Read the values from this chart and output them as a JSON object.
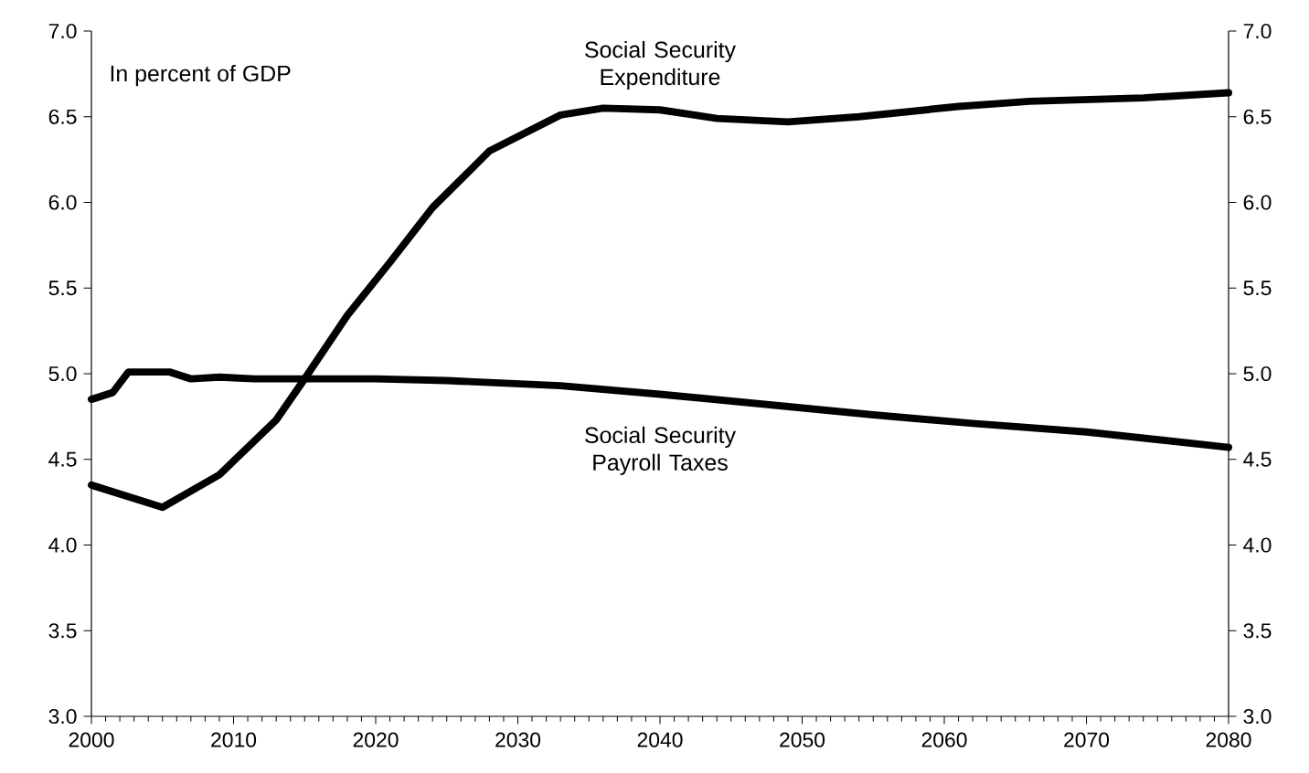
{
  "chart_data": {
    "type": "line",
    "annotations": [
      "In percent of GDP"
    ],
    "xlim": [
      2000,
      2080
    ],
    "xticks": [
      2000,
      2010,
      2020,
      2030,
      2040,
      2050,
      2060,
      2070,
      2080
    ],
    "ylim": [
      3,
      7
    ],
    "yticks": [
      {
        "value": 3,
        "label": "3.0"
      },
      {
        "value": 3.5,
        "label": "3.5"
      },
      {
        "value": 4,
        "label": "4.0"
      },
      {
        "value": 4.5,
        "label": "4.5"
      },
      {
        "value": 5,
        "label": "5.0"
      },
      {
        "value": 5.5,
        "label": "5.5"
      },
      {
        "value": 6,
        "label": "6.0"
      },
      {
        "value": 6.5,
        "label": "6.5"
      },
      {
        "value": 7,
        "label": "7.0"
      }
    ],
    "y2lim": [
      3,
      7
    ],
    "y2ticks": [
      {
        "value": 3,
        "label": "3.0"
      },
      {
        "value": 3.5,
        "label": "3.5"
      },
      {
        "value": 4,
        "label": "4.0"
      },
      {
        "value": 4.5,
        "label": "4.5"
      },
      {
        "value": 5,
        "label": "5.0"
      },
      {
        "value": 5.5,
        "label": "5.5"
      },
      {
        "value": 6,
        "label": "6.0"
      },
      {
        "value": 6.5,
        "label": "6.5"
      },
      {
        "value": 7,
        "label": "7.0"
      }
    ],
    "grid": false,
    "marker": "none",
    "line_style": "solid",
    "series": [
      {
        "name": "Social Security Expenditure",
        "color": "#000000",
        "x": [
          2000,
          2005,
          2009,
          2013,
          2015,
          2018,
          2021,
          2024,
          2028,
          2033,
          2036,
          2040,
          2044,
          2049,
          2054,
          2061,
          2066,
          2074,
          2080
        ],
        "values": [
          4.35,
          4.22,
          4.41,
          4.73,
          4.97,
          5.34,
          5.65,
          5.97,
          6.3,
          6.51,
          6.55,
          6.54,
          6.49,
          6.47,
          6.5,
          6.56,
          6.59,
          6.61,
          6.64
        ]
      },
      {
        "name": "Social Security Payroll Taxes",
        "color": "#000000",
        "x": [
          2000,
          2001.5,
          2002.6,
          2005.5,
          2007,
          2009,
          2011.5,
          2020,
          2025,
          2033,
          2040,
          2050,
          2055,
          2062,
          2070,
          2080
        ],
        "values": [
          4.85,
          4.89,
          5.01,
          5.01,
          4.97,
          4.98,
          4.97,
          4.97,
          4.96,
          4.93,
          4.88,
          4.8,
          4.76,
          4.71,
          4.66,
          4.57
        ]
      }
    ]
  }
}
